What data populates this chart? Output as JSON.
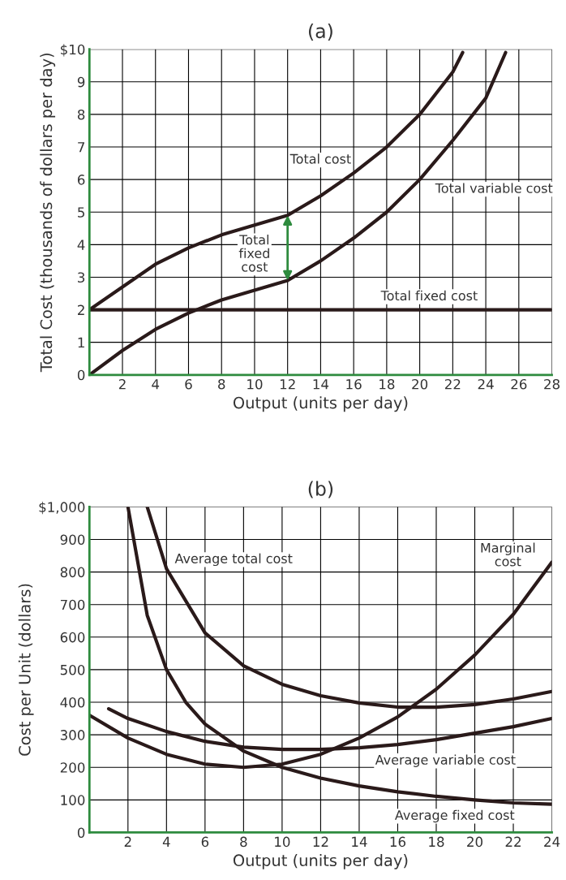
{
  "chart_data": [
    {
      "type": "line",
      "title": "(a)",
      "xlabel": "Output (units per day)",
      "ylabel": "Total Cost (thousands of dollars per day)",
      "xlim": [
        0,
        28
      ],
      "ylim": [
        0,
        10
      ],
      "xticks": [
        {
          "value": 0,
          "label": null
        },
        2,
        4,
        6,
        8,
        10,
        12,
        14,
        16,
        18,
        20,
        22,
        24,
        26,
        28
      ],
      "yticks": [
        0,
        1,
        2,
        3,
        4,
        5,
        6,
        7,
        8,
        9,
        {
          "value": 10,
          "label": "$10"
        }
      ],
      "grid": true,
      "legend": false,
      "marker": "none",
      "line_style": "solid",
      "series": [
        {
          "color": "#2a1a1a",
          "x": [
            0,
            2,
            4,
            6,
            8,
            10,
            12,
            14,
            16,
            18,
            20,
            22,
            22.6
          ],
          "values": [
            2,
            2.7,
            3.4,
            3.9,
            4.3,
            4.6,
            4.9,
            5.5,
            6.2,
            7.0,
            8.0,
            9.3,
            9.9
          ]
        },
        {
          "color": "#2a1a1a",
          "x": [
            0,
            2,
            4,
            6,
            8,
            10,
            12,
            14,
            16,
            18,
            20,
            22,
            24,
            25.2
          ],
          "values": [
            0,
            0.75,
            1.4,
            1.9,
            2.3,
            2.6,
            2.9,
            3.5,
            4.2,
            5.0,
            6.0,
            7.2,
            8.5,
            9.9
          ]
        },
        {
          "color": "#2a1a1a",
          "x": [
            0,
            28
          ],
          "values": [
            2,
            2
          ]
        }
      ],
      "annotations": [
        "Total cost",
        "Total variable cost",
        "Total fixed cost",
        "Total\nfixed\ncost"
      ]
    },
    {
      "type": "line",
      "title": "(b)",
      "xlabel": "Output (units per day)",
      "ylabel": "Cost per Unit (dollars)",
      "xlim": [
        0,
        24
      ],
      "ylim": [
        0,
        1000
      ],
      "xticks": [
        {
          "value": 0,
          "label": null
        },
        2,
        4,
        6,
        8,
        10,
        12,
        14,
        16,
        18,
        20,
        22,
        24
      ],
      "yticks": [
        0,
        100,
        200,
        300,
        400,
        500,
        600,
        700,
        800,
        900,
        {
          "value": 1000,
          "label": "$1,000"
        }
      ],
      "grid": true,
      "legend": false,
      "marker": "none",
      "line_style": "solid",
      "series": [
        {
          "color": "#2a1a1a",
          "x": [
            2,
            3,
            4,
            5,
            6,
            8,
            10,
            12,
            14,
            16,
            18,
            20,
            22,
            24
          ],
          "values": [
            1000,
            667,
            500,
            400,
            333,
            250,
            200,
            167,
            143,
            125,
            111,
            100,
            91,
            87
          ]
        },
        {
          "color": "#2a1a1a",
          "x": [
            3,
            4,
            6,
            8,
            10,
            12,
            14,
            16,
            18,
            20,
            22,
            24
          ],
          "values": [
            1000,
            810,
            613,
            512,
            455,
            420,
            398,
            385,
            385,
            393,
            410,
            433
          ]
        },
        {
          "color": "#2a1a1a",
          "x": [
            1,
            2,
            4,
            6,
            8,
            10,
            12,
            14,
            16,
            18,
            20,
            22,
            24
          ],
          "values": [
            380,
            350,
            310,
            280,
            262,
            255,
            255,
            260,
            270,
            285,
            305,
            325,
            350
          ]
        },
        {
          "color": "#2a1a1a",
          "x": [
            0,
            2,
            4,
            6,
            8,
            10,
            12,
            14,
            16,
            18,
            20,
            22,
            24
          ],
          "values": [
            360,
            290,
            240,
            210,
            200,
            210,
            240,
            290,
            355,
            440,
            545,
            670,
            830
          ]
        }
      ],
      "annotations": [
        "Average total cost",
        "Marginal\ncost",
        "Average variable cost",
        "Average fixed cost"
      ]
    }
  ]
}
